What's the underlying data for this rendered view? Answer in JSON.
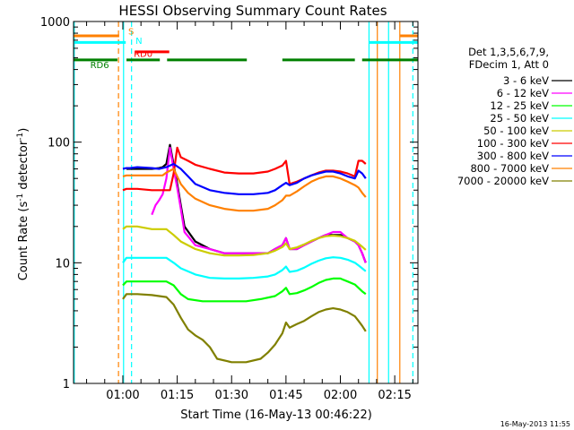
{
  "chart_data": {
    "type": "line",
    "title": "HESSI Observing Summary Count Rates",
    "ylabel_main": "Count Rate (s",
    "ylabel_sup1": "-1",
    "ylabel_mid": " detector",
    "ylabel_sup2": "-1",
    "ylabel_end": ")",
    "xlabel": "Start Time (16-May-13 00:46:22)",
    "timestamp": "16-May-2013 11:55",
    "y_scale": "log",
    "ylim": [
      1,
      1000
    ],
    "xlim": [
      46.4,
      141.4
    ],
    "x_unit": "minutes after 00:00 UT",
    "x_ticks": [
      {
        "t": 60,
        "label": "01:00"
      },
      {
        "t": 75,
        "label": "01:15"
      },
      {
        "t": 90,
        "label": "01:30"
      },
      {
        "t": 105,
        "label": "01:45"
      },
      {
        "t": 120,
        "label": "02:00"
      },
      {
        "t": 135,
        "label": "02:15"
      }
    ],
    "y_ticks": [
      {
        "v": 1,
        "label": "1"
      },
      {
        "v": 10,
        "label": "10"
      },
      {
        "v": 100,
        "label": "100"
      },
      {
        "v": 1000,
        "label": "1000"
      }
    ],
    "legend_header": [
      "Det 1,3,5,6,7,9,",
      "FDecim 1, Att 0"
    ],
    "series": [
      {
        "name": "3 - 6 keV",
        "color": "#000000",
        "x": [
          60,
          61,
          63,
          66,
          68,
          70,
          71,
          72,
          73,
          74,
          75,
          76,
          77,
          80,
          84,
          88,
          92,
          96,
          100,
          102,
          104,
          105,
          106,
          108,
          110,
          112,
          114,
          116,
          118,
          120,
          122,
          124,
          125,
          126,
          127
        ],
        "y": [
          null,
          60,
          60,
          60,
          60,
          61,
          62,
          66,
          95,
          65,
          45,
          30,
          20,
          15,
          13,
          12,
          12,
          12,
          12,
          13,
          14,
          16,
          13,
          13,
          14,
          15,
          16,
          17,
          17,
          17,
          16,
          15,
          14,
          12,
          10
        ]
      },
      {
        "name": "6 - 12 keV",
        "color": "#ff00ff",
        "x": [
          68,
          69,
          70,
          71,
          72,
          73,
          74,
          75,
          76,
          77,
          80,
          84,
          88,
          92,
          96,
          100,
          102,
          104,
          105,
          106,
          108,
          110,
          112,
          114,
          116,
          118,
          120,
          122,
          124,
          125,
          126,
          127
        ],
        "y": [
          25,
          30,
          33,
          37,
          50,
          90,
          60,
          42,
          28,
          18,
          14,
          13,
          12,
          12,
          12,
          12,
          13,
          14,
          16,
          13,
          13,
          14,
          15,
          16,
          17,
          18,
          18,
          16,
          15,
          14,
          12,
          10
        ]
      },
      {
        "name": "12 - 25 keV",
        "color": "#00ff00",
        "x": [
          60,
          61,
          64,
          68,
          72,
          74,
          76,
          78,
          82,
          86,
          90,
          94,
          98,
          102,
          104,
          105,
          106,
          108,
          110,
          112,
          114,
          116,
          118,
          120,
          122,
          124,
          125,
          126,
          127
        ],
        "y": [
          6.5,
          7,
          7,
          7,
          7,
          6.5,
          5.5,
          5,
          4.8,
          4.8,
          4.8,
          4.8,
          5,
          5.3,
          5.8,
          6.2,
          5.5,
          5.6,
          5.9,
          6.3,
          6.8,
          7.2,
          7.4,
          7.4,
          7.0,
          6.6,
          6.2,
          5.8,
          5.5
        ]
      },
      {
        "name": "25 - 50 keV",
        "color": "#00ffff",
        "x": [
          60,
          61,
          64,
          68,
          72,
          74,
          76,
          80,
          84,
          88,
          92,
          96,
          100,
          102,
          104,
          105,
          106,
          108,
          110,
          112,
          114,
          116,
          118,
          120,
          122,
          124,
          125,
          126,
          127
        ],
        "y": [
          10,
          11,
          11,
          11,
          11,
          10,
          9,
          8,
          7.5,
          7.4,
          7.4,
          7.5,
          7.7,
          8,
          8.7,
          9.3,
          8.4,
          8.6,
          9.1,
          9.8,
          10.4,
          10.9,
          11.1,
          11.0,
          10.6,
          10.0,
          9.5,
          9.0,
          8.5
        ]
      },
      {
        "name": "50 - 100 keV",
        "color": "#cccc00",
        "x": [
          60,
          61,
          64,
          68,
          72,
          74,
          76,
          80,
          84,
          88,
          92,
          96,
          100,
          102,
          104,
          105,
          106,
          108,
          110,
          112,
          114,
          116,
          118,
          120,
          122,
          124,
          125,
          126,
          127
        ],
        "y": [
          19,
          20,
          20,
          19,
          19,
          17,
          15,
          13,
          12,
          11.5,
          11.5,
          11.6,
          12,
          12.6,
          13.5,
          14.5,
          13,
          13.4,
          14.2,
          15.2,
          16,
          16.6,
          16.8,
          16.6,
          16,
          15.2,
          14.4,
          13.6,
          12.8
        ]
      },
      {
        "name": "100 - 300 keV",
        "color": "#ff0000",
        "x": [
          60,
          61,
          62,
          64,
          68,
          71,
          73,
          74,
          75,
          76,
          78,
          80,
          84,
          88,
          92,
          96,
          100,
          102,
          104,
          105,
          106,
          108,
          110,
          112,
          114,
          116,
          118,
          120,
          122,
          124,
          125,
          126,
          127
        ],
        "y": [
          40,
          41,
          41,
          41,
          40,
          40,
          40,
          55,
          90,
          75,
          70,
          65,
          60,
          56,
          55,
          55,
          57,
          60,
          64,
          70,
          45,
          47,
          50,
          53,
          56,
          58,
          58,
          57,
          55,
          52,
          70,
          70,
          66
        ]
      },
      {
        "name": "300 - 800 keV",
        "color": "#0000ff",
        "x": [
          60,
          61,
          62,
          64,
          68,
          70,
          72,
          74,
          76,
          78,
          80,
          84,
          88,
          92,
          96,
          100,
          102,
          104,
          105,
          106,
          108,
          110,
          112,
          114,
          116,
          118,
          120,
          122,
          124,
          125,
          126,
          127
        ],
        "y": [
          60,
          61,
          61,
          62,
          61,
          60,
          62,
          66,
          60,
          52,
          45,
          40,
          38,
          37,
          37,
          38,
          40,
          44,
          46,
          44,
          46,
          50,
          53,
          55,
          57,
          57,
          55,
          52,
          50,
          58,
          55,
          50
        ]
      },
      {
        "name": "800 - 7000 keV",
        "color": "#ff8000",
        "x": [
          60,
          61,
          62,
          64,
          68,
          71,
          72,
          74,
          76,
          78,
          80,
          84,
          88,
          92,
          96,
          100,
          102,
          104,
          105,
          106,
          108,
          110,
          112,
          114,
          116,
          118,
          120,
          122,
          124,
          125,
          126,
          127
        ],
        "y": [
          52,
          53,
          53,
          53,
          53,
          53,
          56,
          60,
          45,
          38,
          34,
          30,
          28,
          27,
          27,
          28,
          30,
          33,
          36,
          36,
          39,
          43,
          47,
          50,
          52,
          52,
          50,
          47,
          44,
          42,
          38,
          35
        ]
      },
      {
        "name": "7000 - 20000 keV",
        "color": "#808000",
        "x": [
          60,
          61,
          64,
          68,
          72,
          74,
          76,
          78,
          80,
          82,
          84,
          86,
          90,
          94,
          98,
          100,
          102,
          104,
          105,
          106,
          108,
          110,
          112,
          114,
          116,
          118,
          120,
          122,
          124,
          125,
          126,
          127
        ],
        "y": [
          5,
          5.5,
          5.5,
          5.4,
          5.2,
          4.5,
          3.5,
          2.8,
          2.5,
          2.3,
          2.0,
          1.6,
          1.5,
          1.5,
          1.6,
          1.8,
          2.1,
          2.6,
          3.2,
          2.9,
          3.1,
          3.3,
          3.6,
          3.9,
          4.1,
          4.2,
          4.1,
          3.9,
          3.6,
          3.3,
          3.0,
          2.7
        ]
      }
    ],
    "flag_bars": [
      {
        "label": "S",
        "color": "#ff8000",
        "label_t": 61.5,
        "label_v": 780,
        "segments": [
          [
            46.4,
            59.0
          ],
          [
            136.5,
            141.4
          ]
        ],
        "v": 760
      },
      {
        "label": "N",
        "color": "#00ffff",
        "label_t": 63.5,
        "label_v": 650,
        "segments": [
          [
            46.4,
            60.8
          ],
          [
            128.0,
            141.4
          ]
        ],
        "v": 670
      },
      {
        "label": "RD0",
        "color": "#ff0000",
        "label_t": 63.0,
        "label_v": 510,
        "segments": [
          [
            63.5,
            72.8
          ]
        ],
        "v": 560
      },
      {
        "label": "RD6",
        "color": "#008000",
        "label_t": 51.0,
        "label_v": 410,
        "segments": [
          [
            46.4,
            58.5
          ],
          [
            61.0,
            70.2
          ],
          [
            72.2,
            94.2
          ],
          [
            104.0,
            124.0
          ],
          [
            126.0,
            141.4
          ]
        ],
        "v": 480
      }
    ],
    "vertical_markers": [
      {
        "t": 46.6,
        "color": "#00ffff",
        "dashed": false
      },
      {
        "t": 58.8,
        "color": "#ff8000",
        "dashed": true
      },
      {
        "t": 60.2,
        "color": "#00ffff",
        "dashed": false
      },
      {
        "t": 62.4,
        "color": "#00ffff",
        "dashed": true
      },
      {
        "t": 127.9,
        "color": "#00ffff",
        "dashed": false
      },
      {
        "t": 130.2,
        "color": "#ff8000",
        "dashed": false
      },
      {
        "t": 133.3,
        "color": "#00ffff",
        "dashed": false
      },
      {
        "t": 136.4,
        "color": "#ff8000",
        "dashed": false
      },
      {
        "t": 140.0,
        "color": "#00ffff",
        "dashed": true
      }
    ]
  }
}
